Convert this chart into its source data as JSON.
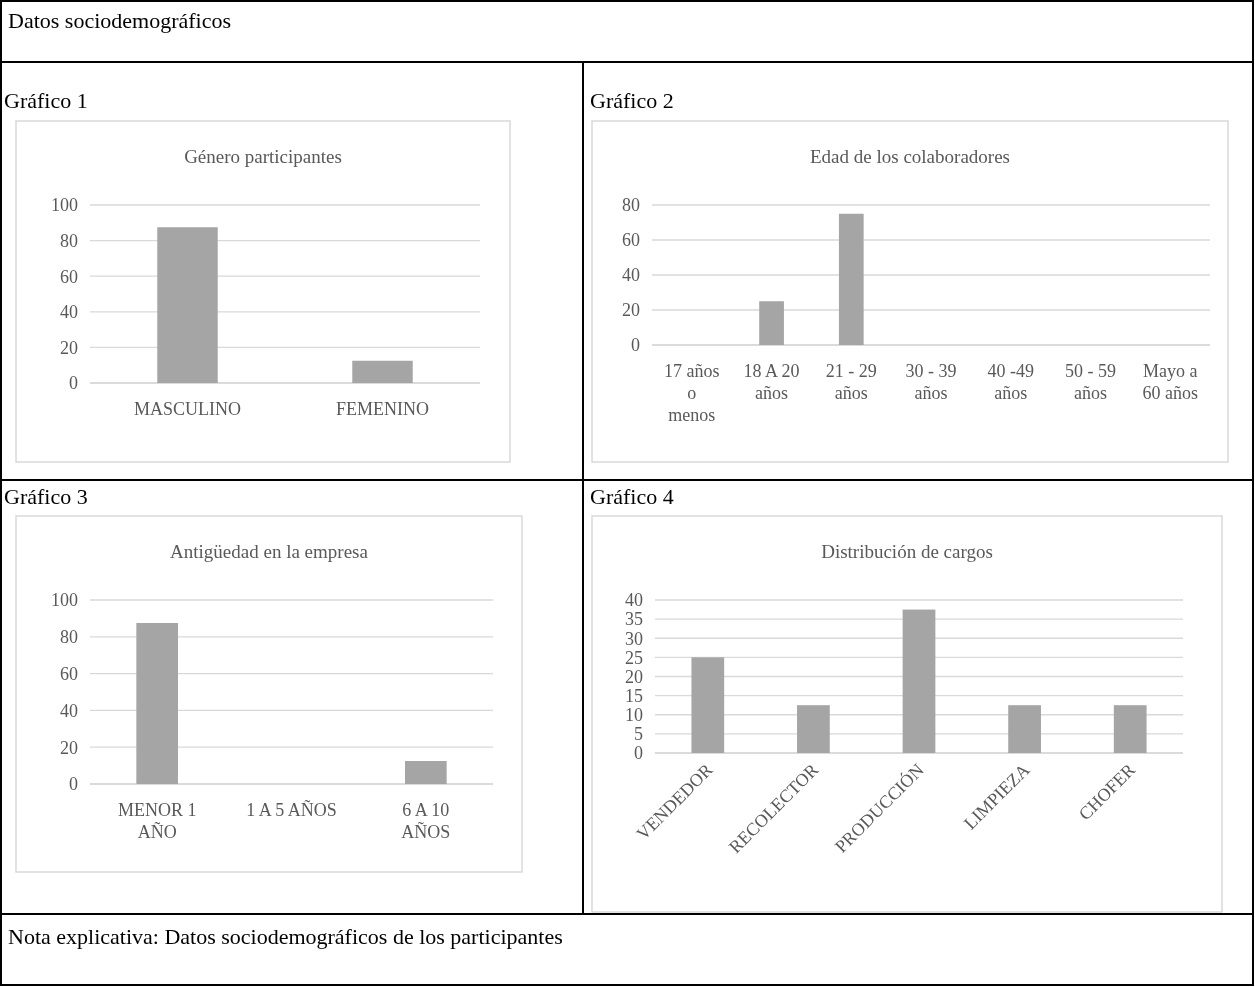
{
  "chart_data": [
    {
      "type": "bar",
      "title": "Género participantes",
      "subtitle": "Gráfico 1",
      "annotations": [
        "Datos sociodemográficos"
      ],
      "categories": [
        "MASCULINO",
        "FEMENINO"
      ],
      "values": [
        87.5,
        12.5
      ],
      "color": "#a5a5a5",
      "ylim": [
        0,
        100
      ],
      "yticks": [
        0,
        20,
        40,
        60,
        80,
        100
      ],
      "grid": "y"
    },
    {
      "type": "bar",
      "title": "Edad de los colaboradores",
      "subtitle": "Gráfico 2",
      "categories": [
        "17 años o menos",
        "18 A 20 años",
        "21 - 29 años",
        "30 - 39 años",
        "40 -49 años",
        "50 - 59 años",
        "Mayo a 60 años"
      ],
      "values": [
        0,
        25,
        75,
        0,
        0,
        0,
        0
      ],
      "color": "#a5a5a5",
      "ylim": [
        0,
        80
      ],
      "yticks": [
        0,
        20,
        40,
        60,
        80
      ],
      "grid": "y"
    },
    {
      "type": "bar",
      "title": "Antigüedad en la empresa",
      "subtitle": "Gráfico 3",
      "categories": [
        "MENOR 1 AÑO",
        "1 A 5 AÑOS",
        "6 A 10 AÑOS"
      ],
      "values": [
        87.5,
        0,
        12.5
      ],
      "color": "#a5a5a5",
      "ylim": [
        0,
        100
      ],
      "yticks": [
        0,
        20,
        40,
        60,
        80,
        100
      ],
      "grid": "y"
    },
    {
      "type": "bar",
      "title": "Distribución de cargos",
      "subtitle": "Gráfico 4",
      "annotations": [
        "Nota explicativa: Datos sociodemográficos de los participantes"
      ],
      "categories": [
        "VENDEDOR",
        "RECOLECTOR",
        "PRODUCCIÓN",
        "LIMPIEZA",
        "CHOFER"
      ],
      "values": [
        25,
        12.5,
        37.5,
        12.5,
        12.5
      ],
      "color": "#a5a5a5",
      "ylim": [
        0,
        40
      ],
      "yticks": [
        0,
        5,
        10,
        15,
        20,
        25,
        30,
        35,
        40
      ],
      "grid": "y"
    }
  ]
}
